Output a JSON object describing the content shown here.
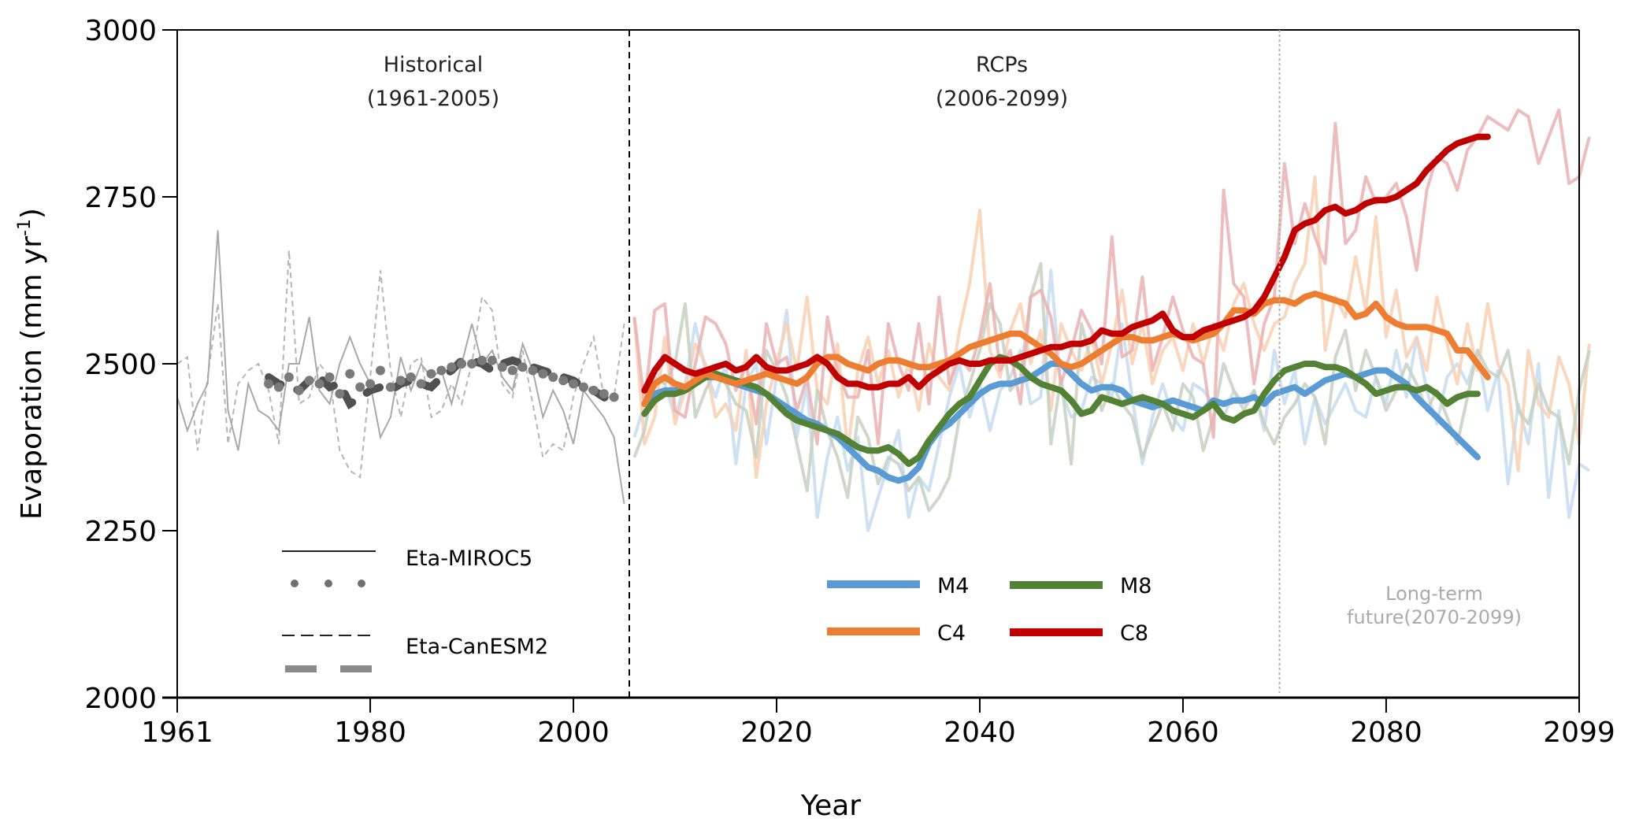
{
  "chart_data": {
    "type": "line",
    "title": "",
    "xlabel": "Year",
    "ylabel": "Evaporation (mm yr",
    "ylabel_sup": "-1",
    "ylabel_close": ")",
    "xlim": [
      1961,
      2099
    ],
    "ylim": [
      2000,
      3000
    ],
    "xticks": [
      1961,
      1980,
      2000,
      2020,
      2040,
      2060,
      2080,
      2099
    ],
    "yticks": [
      2000,
      2250,
      2500,
      2750,
      3000
    ],
    "grid": false,
    "annotations": {
      "historical_title": "Historical",
      "historical_range": "(1961-2005)",
      "rcp_title": "RCPs",
      "rcp_range": "(2006-2099)",
      "longterm_line1": "Long-term",
      "longterm_line2": "future(2070-2099)",
      "historical_boundary_year": 2005.5,
      "longterm_boundary_year": 2069.5
    },
    "legend_models": [
      {
        "name": "Eta-MIROC5",
        "annual_style": "solid",
        "smoothed_style": "dots"
      },
      {
        "name": "Eta-CanESM2",
        "annual_style": "dashed",
        "smoothed_style": "long-dash"
      }
    ],
    "legend_scenarios": [
      {
        "name": "M4",
        "color": "#5b9bd5"
      },
      {
        "name": "M8",
        "color": "#548235"
      },
      {
        "name": "C4",
        "color": "#ed7d31"
      },
      {
        "name": "C8",
        "color": "#c00000"
      }
    ],
    "historical": {
      "years_start": 1961,
      "miroc5_annual": [
        2450,
        2400,
        2440,
        2470,
        2700,
        2430,
        2370,
        2470,
        2430,
        2420,
        2400,
        2500,
        2500,
        2570,
        2460,
        2440,
        2500,
        2540,
        2500,
        2470,
        2390,
        2420,
        2510,
        2460,
        2500,
        2480,
        2490,
        2440,
        2500,
        2560,
        2500,
        2520,
        2480,
        2460,
        2530,
        2490,
        2420,
        2460,
        2430,
        2380,
        2460,
        2440,
        2420,
        2390,
        2290
      ],
      "canesm2_annual": [
        2500,
        2510,
        2370,
        2480,
        2590,
        2380,
        2470,
        2490,
        2500,
        2460,
        2380,
        2670,
        2440,
        2450,
        2500,
        2480,
        2370,
        2340,
        2330,
        2480,
        2640,
        2490,
        2420,
        2500,
        2510,
        2420,
        2430,
        2470,
        2440,
        2500,
        2600,
        2580,
        2470,
        2450,
        2520,
        2440,
        2360,
        2380,
        2370,
        2450,
        2500,
        2540,
        2450,
        2450,
        2560
      ],
      "miroc5_smoothed_start": 1970,
      "miroc5_smoothed": [
        2470,
        2465,
        2480,
        2460,
        2475,
        2470,
        2480,
        2455,
        2485,
        2465,
        2470,
        2490,
        2465,
        2475,
        2480,
        2470,
        2485,
        2490,
        2495,
        2500,
        2500,
        2505,
        2505,
        2495,
        2490,
        2495,
        2490,
        2485,
        2480,
        2475,
        2470,
        2465,
        2460,
        2455,
        2450
      ],
      "canesm2_smoothed_start": 1970,
      "canesm2_smoothed": [
        2480,
        2470,
        2465,
        2460,
        2475,
        2480,
        2465,
        2470,
        2440,
        2450,
        2460,
        2465,
        2460,
        2470,
        2475,
        2470,
        2465,
        2480,
        2490,
        2505,
        2505,
        2500,
        2490,
        2500,
        2505,
        2500,
        2495,
        2490,
        2485,
        2480,
        2475,
        2465,
        2460,
        2450,
        2440
      ]
    },
    "projections": {
      "years_start": 2006,
      "smoothed_start": 2007,
      "series": [
        {
          "name": "M4",
          "color": "#5b9bd5",
          "faint": "#c5dcf0",
          "annual": [
            2390,
            2440,
            2490,
            2470,
            2420,
            2470,
            2560,
            2490,
            2450,
            2500,
            2350,
            2470,
            2500,
            2380,
            2480,
            2580,
            2390,
            2470,
            2270,
            2360,
            2420,
            2340,
            2390,
            2250,
            2300,
            2350,
            2400,
            2270,
            2330,
            2310,
            2380,
            2450,
            2500,
            2420,
            2470,
            2400,
            2460,
            2480,
            2520,
            2440,
            2450,
            2640,
            2460,
            2420,
            2430,
            2480,
            2470,
            2450,
            2560,
            2450,
            2350,
            2420,
            2470,
            2420,
            2400,
            2470,
            2460,
            2440,
            2420,
            2460,
            2440,
            2460,
            2400,
            2520,
            2440,
            2490,
            2380,
            2450,
            2410,
            2440,
            2470,
            2430,
            2420,
            2480,
            2440,
            2520,
            2450,
            2540,
            2460,
            2410,
            2480,
            2500,
            2470,
            2520,
            2430,
            2490,
            2320,
            2440,
            2380,
            2500,
            2300,
            2430,
            2270,
            2350,
            2340
          ],
          "smoothed": [
            2440,
            2455,
            2460,
            2460,
            2465,
            2470,
            2480,
            2480,
            2475,
            2470,
            2465,
            2460,
            2455,
            2445,
            2435,
            2425,
            2415,
            2410,
            2400,
            2390,
            2375,
            2360,
            2345,
            2340,
            2330,
            2325,
            2330,
            2345,
            2380,
            2400,
            2410,
            2425,
            2440,
            2455,
            2465,
            2470,
            2470,
            2475,
            2480,
            2490,
            2500,
            2500,
            2485,
            2470,
            2460,
            2465,
            2465,
            2460,
            2445,
            2440,
            2435,
            2440,
            2445,
            2440,
            2435,
            2430,
            2445,
            2440,
            2445,
            2445,
            2450,
            2440,
            2455,
            2460,
            2465,
            2455,
            2465,
            2475,
            2480,
            2485,
            2480,
            2485,
            2490,
            2490,
            2480,
            2470,
            2450,
            2435,
            2420,
            2405,
            2390,
            2375,
            2360
          ]
        },
        {
          "name": "C4",
          "color": "#ed7d31",
          "faint": "#f9cfb1",
          "annual": [
            2570,
            2380,
            2420,
            2540,
            2410,
            2460,
            2530,
            2500,
            2420,
            2440,
            2400,
            2520,
            2330,
            2440,
            2500,
            2560,
            2490,
            2600,
            2460,
            2440,
            2530,
            2370,
            2490,
            2540,
            2470,
            2520,
            2450,
            2500,
            2430,
            2530,
            2480,
            2460,
            2550,
            2620,
            2730,
            2520,
            2480,
            2550,
            2590,
            2500,
            2550,
            2430,
            2560,
            2520,
            2490,
            2540,
            2470,
            2530,
            2610,
            2500,
            2560,
            2470,
            2520,
            2540,
            2490,
            2560,
            2500,
            2560,
            2520,
            2590,
            2620,
            2560,
            2520,
            2560,
            2570,
            2620,
            2650,
            2780,
            2520,
            2600,
            2570,
            2660,
            2580,
            2720,
            2540,
            2610,
            2510,
            2540,
            2490,
            2600,
            2530,
            2470,
            2560,
            2490,
            2590,
            2500,
            2470,
            2340,
            2520,
            2440,
            2420,
            2510,
            2470,
            2380,
            2530
          ],
          "smoothed": [
            2440,
            2470,
            2480,
            2470,
            2465,
            2475,
            2485,
            2480,
            2475,
            2470,
            2475,
            2480,
            2485,
            2480,
            2475,
            2470,
            2480,
            2500,
            2510,
            2510,
            2500,
            2495,
            2490,
            2500,
            2505,
            2505,
            2500,
            2495,
            2495,
            2500,
            2505,
            2515,
            2525,
            2530,
            2535,
            2540,
            2545,
            2545,
            2535,
            2525,
            2515,
            2500,
            2495,
            2500,
            2510,
            2520,
            2530,
            2540,
            2540,
            2535,
            2535,
            2540,
            2545,
            2540,
            2535,
            2540,
            2545,
            2560,
            2580,
            2580,
            2575,
            2590,
            2595,
            2595,
            2590,
            2600,
            2605,
            2600,
            2595,
            2590,
            2570,
            2575,
            2590,
            2570,
            2560,
            2555,
            2555,
            2555,
            2550,
            2545,
            2520,
            2520,
            2500,
            2480
          ]
        },
        {
          "name": "M8",
          "color": "#548235",
          "faint": "#c5d0c0",
          "annual": [
            2360,
            2400,
            2480,
            2470,
            2500,
            2590,
            2420,
            2460,
            2490,
            2470,
            2440,
            2430,
            2360,
            2520,
            2490,
            2450,
            2380,
            2310,
            2460,
            2400,
            2360,
            2300,
            2420,
            2390,
            2320,
            2360,
            2350,
            2310,
            2330,
            2280,
            2300,
            2330,
            2420,
            2470,
            2520,
            2590,
            2560,
            2460,
            2480,
            2600,
            2650,
            2380,
            2480,
            2350,
            2560,
            2500,
            2430,
            2470,
            2440,
            2420,
            2360,
            2400,
            2440,
            2400,
            2470,
            2450,
            2370,
            2420,
            2500,
            2460,
            2430,
            2460,
            2410,
            2380,
            2420,
            2440,
            2470,
            2450,
            2380,
            2510,
            2550,
            2460,
            2520,
            2480,
            2430,
            2460,
            2500,
            2470,
            2430,
            2460,
            2420,
            2380,
            2450,
            2520,
            2490,
            2480,
            2520,
            2430,
            2410,
            2470,
            2430,
            2420,
            2350,
            2460,
            2520
          ],
          "smoothed": [
            2425,
            2445,
            2455,
            2455,
            2460,
            2470,
            2480,
            2485,
            2480,
            2475,
            2470,
            2465,
            2455,
            2440,
            2425,
            2415,
            2410,
            2405,
            2400,
            2395,
            2385,
            2375,
            2370,
            2370,
            2375,
            2365,
            2350,
            2360,
            2385,
            2405,
            2425,
            2440,
            2450,
            2475,
            2500,
            2510,
            2505,
            2495,
            2480,
            2470,
            2465,
            2460,
            2445,
            2425,
            2430,
            2450,
            2445,
            2440,
            2445,
            2450,
            2445,
            2440,
            2430,
            2425,
            2420,
            2430,
            2440,
            2420,
            2415,
            2425,
            2430,
            2455,
            2475,
            2490,
            2495,
            2500,
            2500,
            2495,
            2495,
            2490,
            2480,
            2470,
            2455,
            2460,
            2465,
            2465,
            2460,
            2465,
            2455,
            2440,
            2450,
            2455,
            2455
          ]
        },
        {
          "name": "C8",
          "color": "#c00000",
          "faint": "#eab0b0",
          "annual": [
            2570,
            2440,
            2580,
            2590,
            2430,
            2420,
            2500,
            2570,
            2560,
            2530,
            2460,
            2500,
            2410,
            2560,
            2500,
            2510,
            2430,
            2480,
            2380,
            2570,
            2490,
            2450,
            2450,
            2520,
            2380,
            2560,
            2500,
            2460,
            2560,
            2440,
            2600,
            2470,
            2510,
            2490,
            2540,
            2620,
            2490,
            2520,
            2440,
            2600,
            2610,
            2570,
            2470,
            2520,
            2580,
            2550,
            2500,
            2690,
            2510,
            2520,
            2630,
            2490,
            2540,
            2600,
            2550,
            2510,
            2500,
            2390,
            2760,
            2620,
            2600,
            2470,
            2560,
            2600,
            2800,
            2680,
            2740,
            2690,
            2650,
            2860,
            2680,
            2700,
            2780,
            2740,
            2750,
            2770,
            2720,
            2640,
            2760,
            2810,
            2800,
            2760,
            2820,
            2840,
            2870,
            2860,
            2850,
            2880,
            2870,
            2800,
            2840,
            2880,
            2770,
            2780,
            2840
          ],
          "smoothed": [
            2460,
            2490,
            2510,
            2500,
            2490,
            2485,
            2490,
            2495,
            2500,
            2490,
            2495,
            2510,
            2495,
            2490,
            2490,
            2495,
            2500,
            2510,
            2500,
            2480,
            2470,
            2470,
            2465,
            2465,
            2470,
            2470,
            2480,
            2465,
            2480,
            2490,
            2500,
            2505,
            2500,
            2500,
            2505,
            2505,
            2505,
            2510,
            2515,
            2520,
            2525,
            2525,
            2530,
            2530,
            2535,
            2550,
            2545,
            2545,
            2555,
            2560,
            2565,
            2575,
            2550,
            2540,
            2540,
            2550,
            2555,
            2560,
            2565,
            2570,
            2580,
            2600,
            2630,
            2660,
            2700,
            2710,
            2715,
            2730,
            2735,
            2725,
            2730,
            2740,
            2745,
            2745,
            2750,
            2760,
            2770,
            2790,
            2805,
            2820,
            2830,
            2835,
            2840,
            2840
          ]
        }
      ]
    }
  }
}
